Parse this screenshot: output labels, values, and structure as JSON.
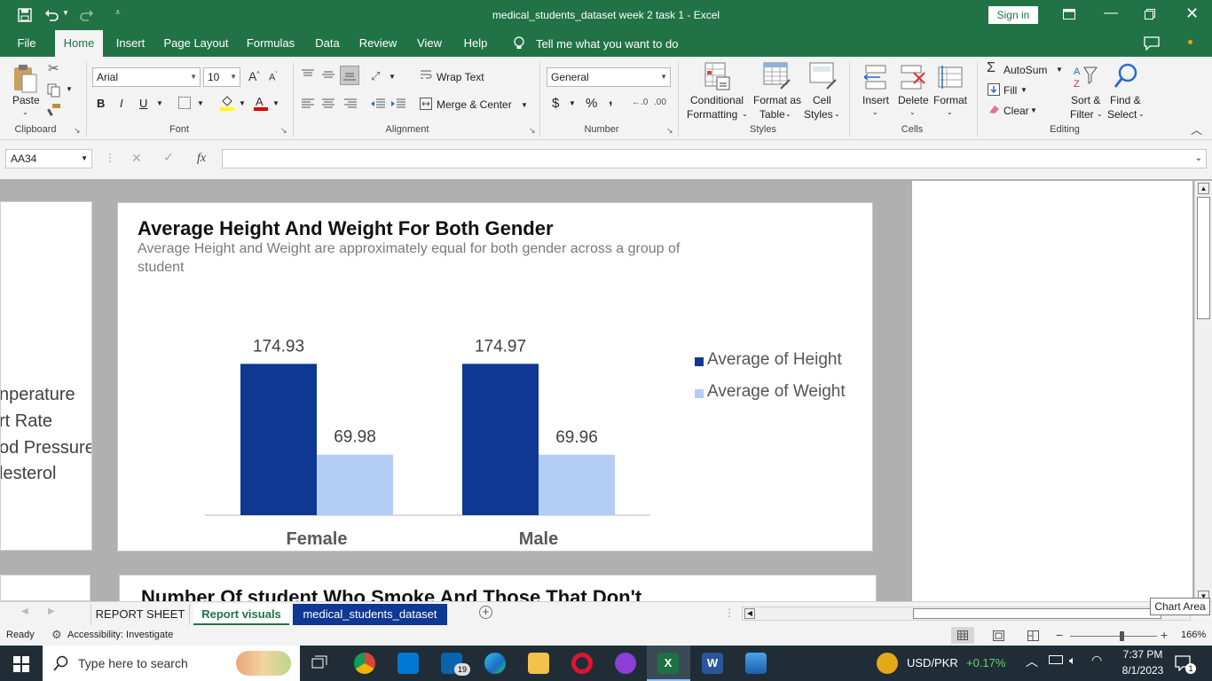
{
  "window": {
    "title": "medical_students_dataset week 2 task 1  -  Excel",
    "sign_in": "Sign in"
  },
  "ribbon_tabs": [
    "File",
    "Home",
    "Insert",
    "Page Layout",
    "Formulas",
    "Data",
    "Review",
    "View",
    "Help"
  ],
  "tell_me": "Tell me what you want to do",
  "clipboard": {
    "paste": "Paste",
    "label": "Clipboard"
  },
  "font": {
    "name": "Arial",
    "size": "10",
    "label": "Font",
    "bold": "B",
    "italic": "I",
    "underline": "U"
  },
  "alignment": {
    "wrap_text": "Wrap Text",
    "merge_center": "Merge & Center",
    "label": "Alignment"
  },
  "number": {
    "format": "General",
    "currency": "$",
    "percent": "%",
    "comma": ",",
    "inc_dec": ".00",
    "label": "Number"
  },
  "styles": {
    "conditional": "Conditional",
    "formatting": "Formatting",
    "format_as": "Format as",
    "table": "Table",
    "cell": "Cell",
    "cell_styles": "Styles",
    "label": "Styles"
  },
  "cells": {
    "insert": "Insert",
    "delete": "Delete",
    "format": "Format",
    "label": "Cells"
  },
  "editing": {
    "autosum": "AutoSum",
    "fill": "Fill",
    "clear": "Clear",
    "sort": "Sort &",
    "filter": "Filter",
    "find": "Find &",
    "select": "Select",
    "label": "Editing"
  },
  "formula_bar": {
    "name_box": "AA34",
    "fx": "fx",
    "value": ""
  },
  "left_panel_items": [
    "nperature",
    "rt Rate",
    "od Pressure",
    "lesterol"
  ],
  "chart_data": {
    "type": "bar",
    "title": "Average Height And Weight For Both Gender",
    "subtitle_line1": "Average Height and Weight are approximately equal for both gender across a group of",
    "subtitle_line2": "student",
    "categories": [
      "Female",
      "Male"
    ],
    "series": [
      {
        "name": "Average of Height",
        "values": [
          174.93,
          174.97
        ],
        "color": "#0f3893"
      },
      {
        "name": "Average of Weight",
        "values": [
          69.98,
          69.96
        ],
        "color": "#b4cdf7"
      }
    ],
    "data_labels": [
      "174.93",
      "69.98",
      "174.97",
      "69.96"
    ],
    "legend_position": "right",
    "grid": false
  },
  "chart2_title": "Number Of student Who Smoke And Those That Don't",
  "tooltip": "Chart Area",
  "sheet_tabs": [
    "REPORT SHEET",
    "Report visuals",
    "medical_students_dataset"
  ],
  "status": {
    "ready": "Ready",
    "accessibility": "Accessibility: Investigate",
    "zoom": "166%"
  },
  "taskbar": {
    "search": "Type here to search",
    "ticker": "USD/PKR",
    "change": "+0.17%",
    "time": "7:37 PM",
    "date": "8/1/2023",
    "mail_badge": "19",
    "notif_badge": "1"
  }
}
